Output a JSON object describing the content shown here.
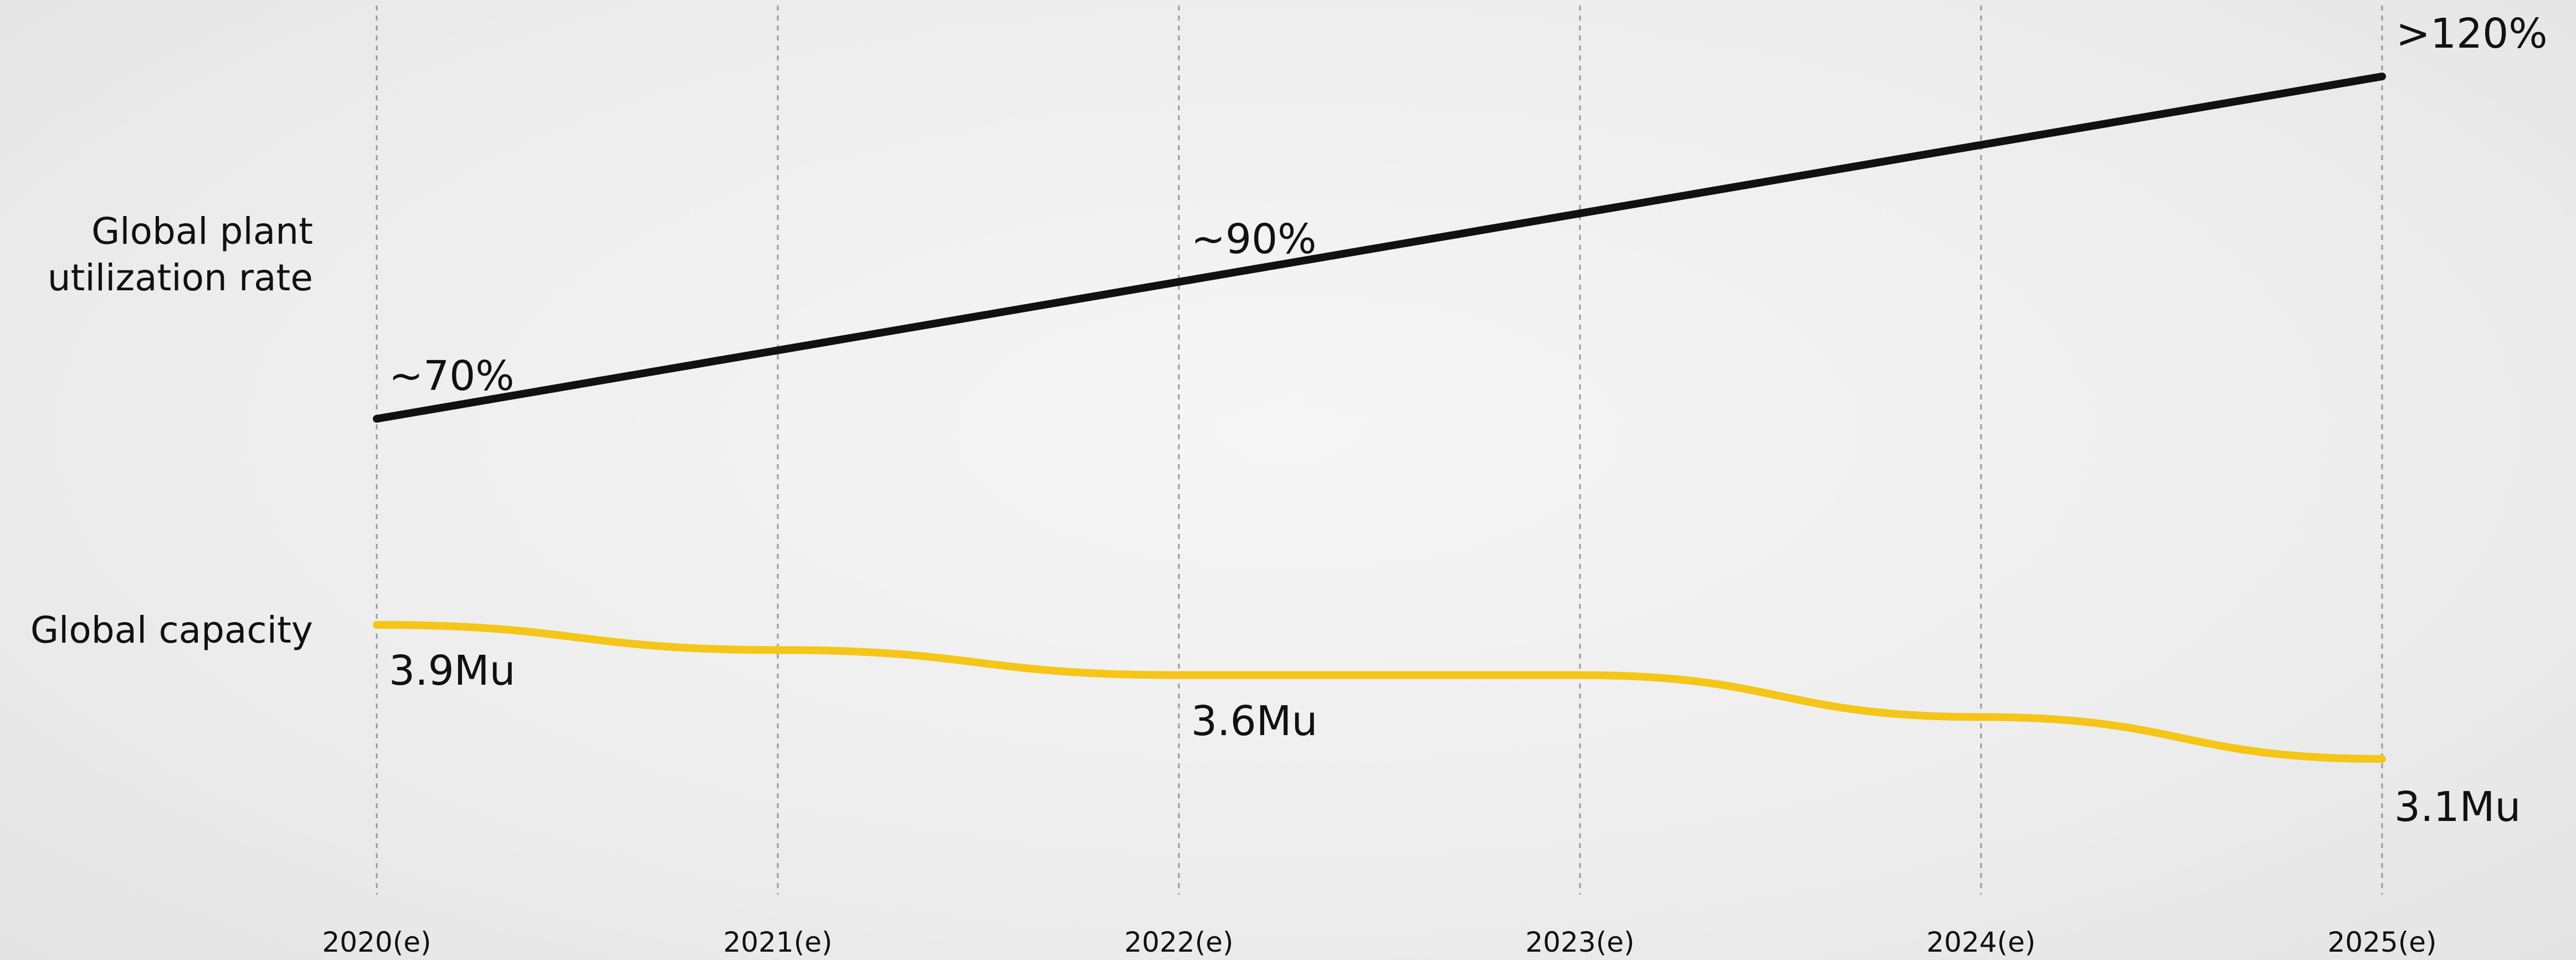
{
  "chart_data": {
    "type": "line",
    "categories": [
      "2020(e)",
      "2021(e)",
      "2022(e)",
      "2023(e)",
      "2024(e)",
      "2025(e)"
    ],
    "grid": "vertical dashed",
    "series": [
      {
        "name": "Global plant utilization rate",
        "color": "#111111",
        "values": [
          70,
          80,
          90,
          100,
          110,
          120
        ],
        "unit": "%",
        "labels": [
          {
            "index": 0,
            "text": "~70%"
          },
          {
            "index": 2,
            "text": "~90%"
          },
          {
            "index": 5,
            "text": ">120%"
          }
        ]
      },
      {
        "name": "Global capacity",
        "color": "#f5c518",
        "values": [
          3.9,
          3.75,
          3.6,
          3.6,
          3.35,
          3.1
        ],
        "unit": "Mu",
        "labels": [
          {
            "index": 0,
            "text": "3.9Mu"
          },
          {
            "index": 2,
            "text": "3.6Mu"
          },
          {
            "index": 5,
            "text": "3.1Mu"
          }
        ]
      }
    ],
    "row_labels": [
      {
        "series": 0,
        "lines": [
          "Global plant",
          "utilization rate"
        ]
      },
      {
        "series": 1,
        "lines": [
          "Global capacity"
        ]
      }
    ]
  }
}
